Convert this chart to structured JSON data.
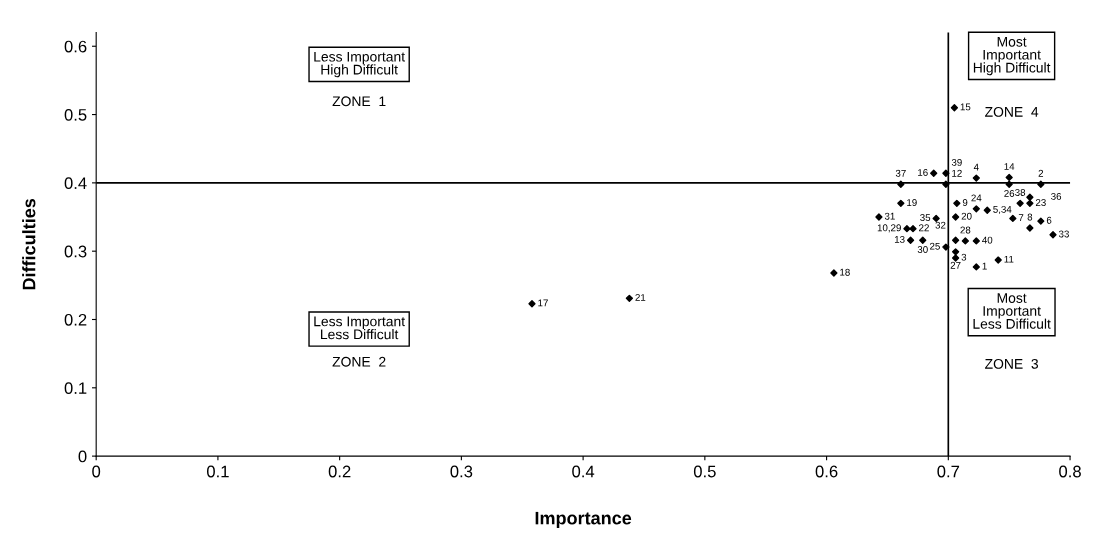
{
  "chart_data": {
    "type": "scatter",
    "xlabel": "Importance",
    "ylabel": "Difficulties",
    "xlim": [
      0,
      0.8
    ],
    "ylim": [
      0,
      0.62
    ],
    "xticks": [
      0,
      0.1,
      0.2,
      0.3,
      0.4,
      0.5,
      0.6,
      0.7,
      0.8
    ],
    "yticks": [
      0,
      0.1,
      0.2,
      0.3,
      0.4,
      0.5,
      0.6
    ],
    "marker": "diamond",
    "grid": false,
    "legend": false,
    "series": [
      {
        "color": "#000000",
        "x": [
          0.723,
          0.776,
          0.706,
          0.723,
          0.732,
          0.776,
          0.753,
          0.767,
          0.707,
          0.666,
          0.741,
          0.698,
          0.669,
          0.75,
          0.705,
          0.688,
          0.358,
          0.606,
          0.661,
          0.706,
          0.438,
          0.671,
          0.767,
          0.723,
          0.698,
          0.75,
          0.706,
          0.714,
          0.679,
          0.643,
          0.706,
          0.786,
          0.69,
          0.767,
          0.661,
          0.759,
          0.698,
          0.723
        ],
        "values": [
          0.277,
          0.398,
          0.29,
          0.407,
          0.36,
          0.344,
          0.348,
          0.334,
          0.37,
          0.333,
          0.287,
          0.398,
          0.316,
          0.408,
          0.51,
          0.414,
          0.223,
          0.268,
          0.37,
          0.35,
          0.231,
          0.333,
          0.37,
          0.362,
          0.306,
          0.398,
          0.299,
          0.315,
          0.316,
          0.35,
          0.316,
          0.324,
          0.348,
          0.379,
          0.398,
          0.37,
          0.414,
          0.315
        ]
      }
    ],
    "ref_lines": [
      {
        "axis": "y",
        "value": 0.4,
        "color": "#000000"
      },
      {
        "axis": "x",
        "value": 0.7,
        "color": "#000000"
      }
    ],
    "annotations": [
      "Less Important\nHigh Difficult",
      "ZONE  1",
      "Less Important\nLess Difficult",
      "ZONE  2",
      "Most\nImportant\nHigh Difficult",
      "ZONE  4",
      "Most\nImportant\nLess Difficult",
      "ZONE  3",
      {
        "text": "1",
        "x": 0.723,
        "y": 0.277
      },
      {
        "text": "2",
        "x": 0.776,
        "y": 0.398
      },
      {
        "text": "3",
        "x": 0.706,
        "y": 0.29
      },
      {
        "text": "4",
        "x": 0.723,
        "y": 0.407
      },
      {
        "text": "5,34",
        "x": 0.732,
        "y": 0.36
      },
      {
        "text": "6",
        "x": 0.776,
        "y": 0.344
      },
      {
        "text": "7",
        "x": 0.753,
        "y": 0.348
      },
      {
        "text": "8",
        "x": 0.767,
        "y": 0.334
      },
      {
        "text": "9",
        "x": 0.707,
        "y": 0.37
      },
      {
        "text": "10,29",
        "x": 0.666,
        "y": 0.333
      },
      {
        "text": "11",
        "x": 0.741,
        "y": 0.287
      },
      {
        "text": "12",
        "x": 0.698,
        "y": 0.398
      },
      {
        "text": "13",
        "x": 0.669,
        "y": 0.316
      },
      {
        "text": "14",
        "x": 0.75,
        "y": 0.408
      },
      {
        "text": "15",
        "x": 0.705,
        "y": 0.51
      },
      {
        "text": "16",
        "x": 0.688,
        "y": 0.414
      },
      {
        "text": "17",
        "x": 0.358,
        "y": 0.223
      },
      {
        "text": "18",
        "x": 0.606,
        "y": 0.268
      },
      {
        "text": "19",
        "x": 0.661,
        "y": 0.37
      },
      {
        "text": "20",
        "x": 0.706,
        "y": 0.35
      },
      {
        "text": "21",
        "x": 0.438,
        "y": 0.231
      },
      {
        "text": "22",
        "x": 0.671,
        "y": 0.333
      },
      {
        "text": "23",
        "x": 0.767,
        "y": 0.37
      },
      {
        "text": "24",
        "x": 0.723,
        "y": 0.362
      },
      {
        "text": "25",
        "x": 0.698,
        "y": 0.306
      },
      {
        "text": "26",
        "x": 0.75,
        "y": 0.398
      },
      {
        "text": "27",
        "x": 0.706,
        "y": 0.299
      },
      {
        "text": "28",
        "x": 0.714,
        "y": 0.315
      },
      {
        "text": "30",
        "x": 0.679,
        "y": 0.316
      },
      {
        "text": "31",
        "x": 0.643,
        "y": 0.35
      },
      {
        "text": "32",
        "x": 0.706,
        "y": 0.316
      },
      {
        "text": "33",
        "x": 0.786,
        "y": 0.324
      },
      {
        "text": "35",
        "x": 0.69,
        "y": 0.348
      },
      {
        "text": "36",
        "x": 0.767,
        "y": 0.379
      },
      {
        "text": "37",
        "x": 0.661,
        "y": 0.398
      },
      {
        "text": "38",
        "x": 0.759,
        "y": 0.37
      },
      {
        "text": "39",
        "x": 0.698,
        "y": 0.414
      },
      {
        "text": "40",
        "x": 0.723,
        "y": 0.315
      }
    ]
  }
}
